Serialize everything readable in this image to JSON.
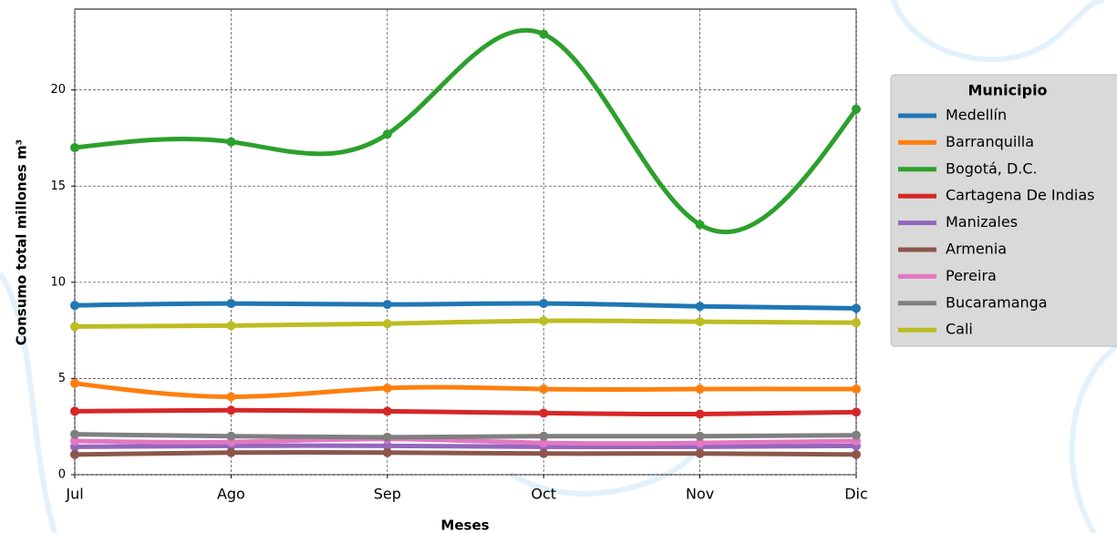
{
  "chart_data": {
    "type": "line",
    "x_label": "Meses",
    "y_label": "Consumo total millones m³",
    "legend_title": "Municipio",
    "legend": "right",
    "grid": true,
    "smooth": true,
    "categories": [
      "Jul",
      "Ago",
      "Sep",
      "Oct",
      "Nov",
      "Dic"
    ],
    "ylim": [
      0,
      24.2
    ],
    "yticks": [
      0,
      5,
      10,
      15,
      20
    ],
    "series": [
      {
        "name": "Medellín",
        "color": "#1f77b4",
        "values": [
          8.8,
          8.9,
          8.85,
          8.9,
          8.75,
          8.65
        ]
      },
      {
        "name": "Barranquilla",
        "color": "#ff7f0e",
        "values": [
          4.75,
          4.05,
          4.5,
          4.45,
          4.45,
          4.45
        ]
      },
      {
        "name": "Bogotá, D.C.",
        "color": "#2ca02c",
        "values": [
          17.0,
          17.3,
          17.7,
          22.9,
          13.0,
          19.0
        ]
      },
      {
        "name": "Cartagena De Indias",
        "color": "#d62728",
        "values": [
          3.3,
          3.35,
          3.3,
          3.2,
          3.15,
          3.25
        ]
      },
      {
        "name": "Manizales",
        "color": "#9467bd",
        "values": [
          1.45,
          1.5,
          1.5,
          1.45,
          1.45,
          1.5
        ]
      },
      {
        "name": "Armenia",
        "color": "#8c564b",
        "values": [
          1.05,
          1.15,
          1.15,
          1.1,
          1.1,
          1.05
        ]
      },
      {
        "name": "Pereira",
        "color": "#e377c2",
        "values": [
          1.75,
          1.7,
          1.85,
          1.65,
          1.65,
          1.75
        ]
      },
      {
        "name": "Bucaramanga",
        "color": "#7f7f7f",
        "values": [
          2.1,
          2.0,
          1.95,
          2.0,
          2.0,
          2.05
        ]
      },
      {
        "name": "Cali",
        "color": "#bcbd22",
        "values": [
          7.7,
          7.75,
          7.85,
          8.0,
          7.95,
          7.9
        ]
      }
    ]
  }
}
